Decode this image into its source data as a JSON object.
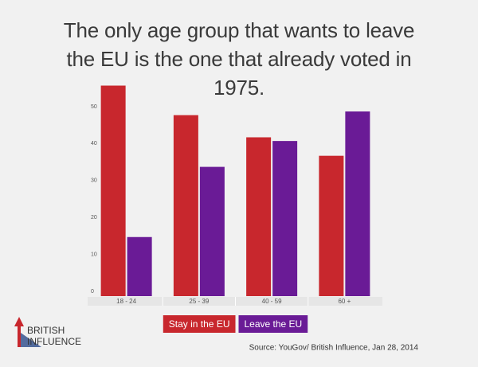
{
  "chart_data": {
    "type": "bar",
    "title": "The only age group that wants to leave the EU is the one that already voted in 1975.",
    "categories": [
      "18 - 24",
      "25 - 39",
      "40 - 59",
      "60 +"
    ],
    "series": [
      {
        "name": "Stay in the EU",
        "color": "#c8272d",
        "values": [
          57,
          49,
          43,
          38
        ]
      },
      {
        "name": "Leave the EU",
        "color": "#6a1b96",
        "values": [
          16,
          35,
          42,
          50
        ]
      }
    ],
    "ylim": [
      0,
      60
    ],
    "yticks": [
      0,
      10,
      20,
      30,
      40,
      50
    ],
    "grid": false,
    "legend": "bottom",
    "source": "Source: YouGov/ British Influence, Jan 28, 2014"
  },
  "logo": {
    "line1": "BRITISH",
    "line2": "INFLUENCE"
  }
}
